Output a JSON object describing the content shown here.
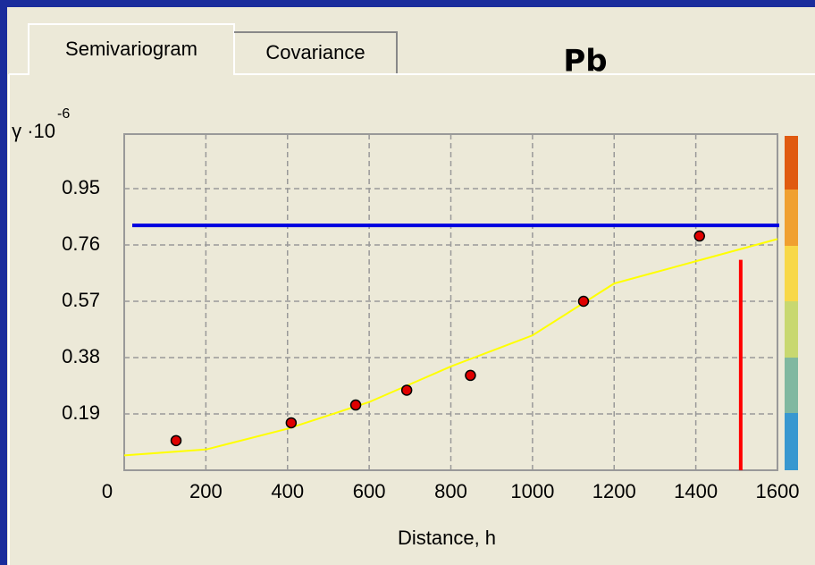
{
  "tabs": [
    "Semivariogram",
    "Covariance"
  ],
  "chart_data": {
    "type": "scatter",
    "title": "Pb",
    "x_label": "Distance, h",
    "y_label": "γ ·10",
    "y_label_exponent": "-6",
    "xlim": [
      0,
      1600
    ],
    "xticks": [
      0,
      200,
      400,
      600,
      800,
      1000,
      1200,
      1400,
      1600
    ],
    "ylim": [
      0,
      1.134
    ],
    "yticks": [
      0.19,
      0.38,
      0.57,
      0.76,
      0.95
    ],
    "grid": true,
    "points": {
      "color": "#e00000",
      "x": [
        127,
        409,
        567,
        692,
        848,
        1125,
        1409
      ],
      "y": [
        0.1,
        0.16,
        0.22,
        0.27,
        0.32,
        0.57,
        0.79
      ]
    },
    "model": {
      "color": "#ffff00",
      "x": [
        0,
        200,
        400,
        600,
        800,
        1000,
        1200,
        1400,
        1600
      ],
      "y": [
        0.05,
        0.07,
        0.14,
        0.23,
        0.35,
        0.455,
        0.63,
        0.705,
        0.78
      ]
    },
    "sill": {
      "value": 0.826,
      "color": "#0000e0"
    },
    "range": {
      "value": 1510,
      "color": "#ff0000"
    }
  }
}
